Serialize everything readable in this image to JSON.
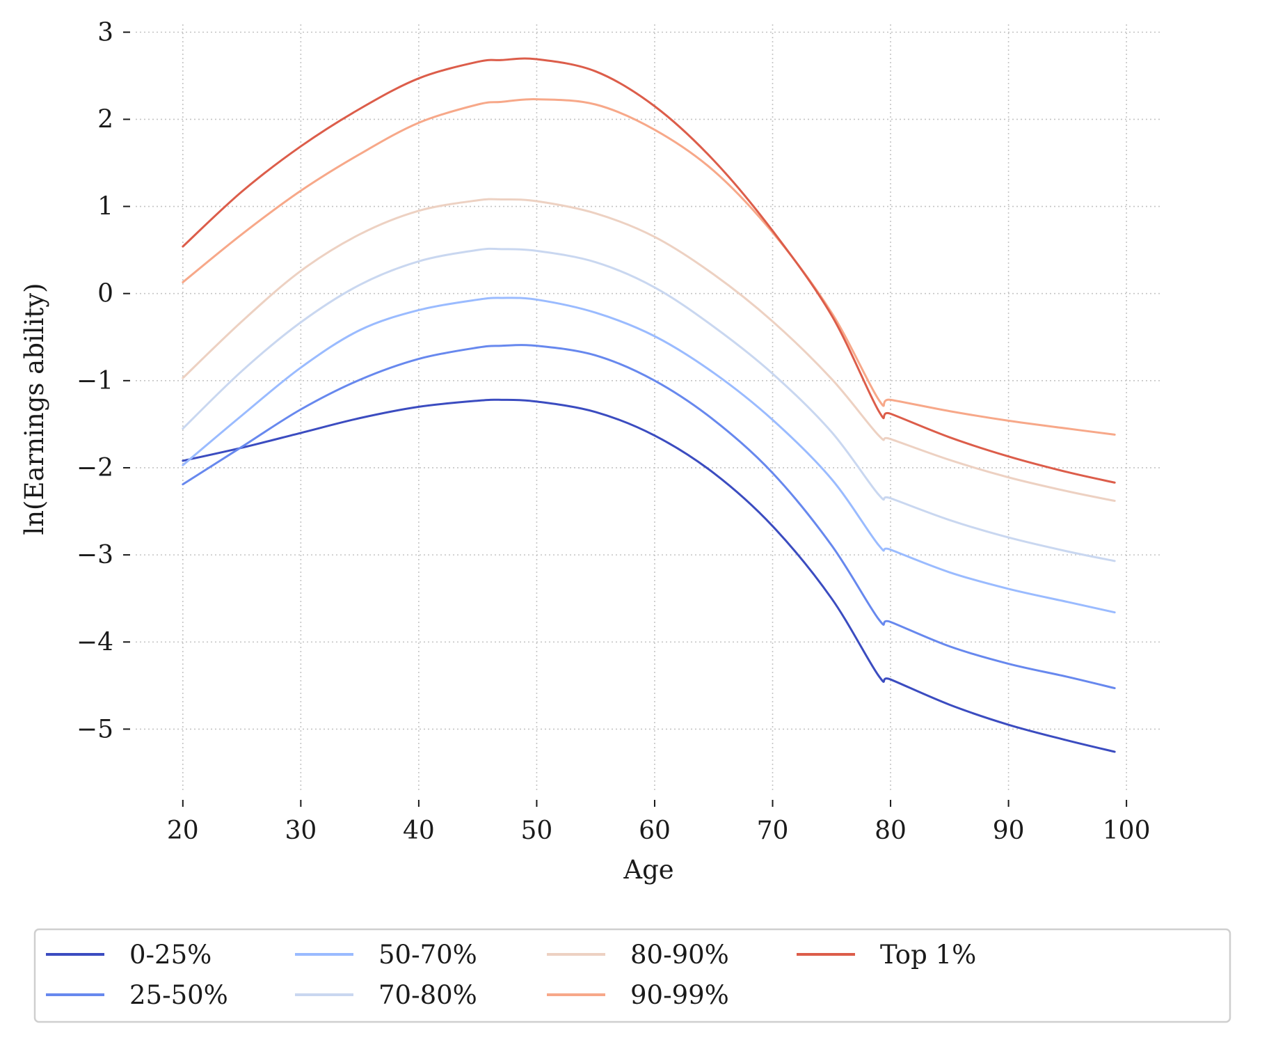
{
  "chart_data": {
    "type": "line",
    "title": "",
    "xlabel": "Age",
    "ylabel": "ln(Earnings ability)",
    "xlim": [
      16,
      103
    ],
    "ylim": [
      -5.7,
      3.05
    ],
    "xticks": [
      20,
      30,
      40,
      50,
      60,
      70,
      80,
      90,
      100
    ],
    "yticks": [
      3,
      2,
      1,
      0,
      -1,
      -2,
      -3,
      -4,
      -5
    ],
    "xtick_labels": [
      "20",
      "30",
      "40",
      "50",
      "60",
      "70",
      "80",
      "90",
      "100"
    ],
    "ytick_labels": [
      "3",
      "2",
      "1",
      "0",
      "−1",
      "−2",
      "−3",
      "−4",
      "−5"
    ],
    "grid": true,
    "legend_position": "bottom-center",
    "legend_columns": 5,
    "x": [
      20,
      25,
      30,
      35,
      40,
      45,
      47,
      50,
      55,
      60,
      65,
      70,
      75,
      79,
      80,
      85,
      90,
      95,
      99
    ],
    "series": [
      {
        "name": "0-25%",
        "color": "#3b4cc0",
        "values": [
          -1.92,
          -1.77,
          -1.6,
          -1.43,
          -1.3,
          -1.23,
          -1.22,
          -1.24,
          -1.36,
          -1.63,
          -2.06,
          -2.67,
          -3.5,
          -4.39,
          -4.43,
          -4.72,
          -4.95,
          -5.13,
          -5.26
        ]
      },
      {
        "name": "25-50%",
        "color": "#6788ee",
        "values": [
          -2.19,
          -1.76,
          -1.33,
          -0.99,
          -0.75,
          -0.62,
          -0.6,
          -0.6,
          -0.71,
          -1.0,
          -1.45,
          -2.06,
          -2.89,
          -3.74,
          -3.77,
          -4.05,
          -4.25,
          -4.4,
          -4.53
        ]
      },
      {
        "name": "50-70%",
        "color": "#9abbff",
        "values": [
          -1.97,
          -1.4,
          -0.85,
          -0.42,
          -0.19,
          -0.07,
          -0.05,
          -0.07,
          -0.22,
          -0.49,
          -0.91,
          -1.45,
          -2.13,
          -2.89,
          -2.94,
          -3.2,
          -3.39,
          -3.54,
          -3.66
        ]
      },
      {
        "name": "70-80%",
        "color": "#c9d7f0",
        "values": [
          -1.55,
          -0.89,
          -0.33,
          0.1,
          0.37,
          0.5,
          0.51,
          0.49,
          0.36,
          0.07,
          -0.38,
          -0.92,
          -1.59,
          -2.31,
          -2.35,
          -2.6,
          -2.8,
          -2.96,
          -3.07
        ]
      },
      {
        "name": "80-90%",
        "color": "#edd1c2",
        "values": [
          -0.97,
          -0.32,
          0.26,
          0.68,
          0.95,
          1.07,
          1.08,
          1.06,
          0.92,
          0.65,
          0.22,
          -0.32,
          -0.98,
          -1.63,
          -1.67,
          -1.91,
          -2.11,
          -2.27,
          -2.38
        ]
      },
      {
        "name": "90-99%",
        "color": "#f7a889",
        "values": [
          0.13,
          0.68,
          1.18,
          1.6,
          1.96,
          2.17,
          2.2,
          2.23,
          2.17,
          1.88,
          1.41,
          0.7,
          -0.22,
          -1.22,
          -1.22,
          -1.35,
          -1.46,
          -1.55,
          -1.62
        ]
      },
      {
        "name": "Top 1%",
        "color": "#dc5d4a",
        "values": [
          0.54,
          1.17,
          1.69,
          2.12,
          2.47,
          2.66,
          2.68,
          2.69,
          2.55,
          2.15,
          1.53,
          0.72,
          -0.25,
          -1.35,
          -1.38,
          -1.65,
          -1.87,
          -2.05,
          -2.17
        ]
      }
    ]
  }
}
